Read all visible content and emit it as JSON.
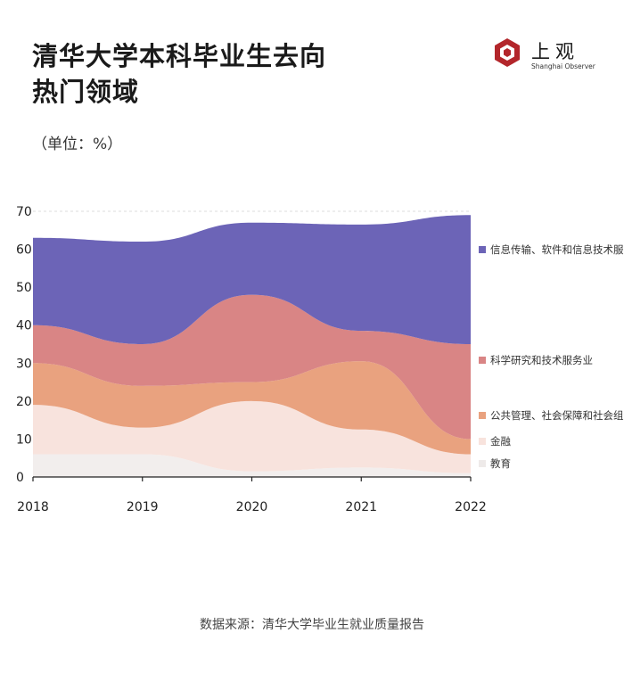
{
  "header": {
    "title_line1": "清华大学本科毕业生去向",
    "title_line2": "热门领域",
    "unit": "（单位：%）"
  },
  "logo": {
    "cn": "上观",
    "en": "Shanghai Observer"
  },
  "chart_data": {
    "type": "area",
    "title": "清华大学本科毕业生去向热门领域",
    "ylabel": "单位：%",
    "categories": [
      "2018",
      "2019",
      "2020",
      "2021",
      "2022"
    ],
    "ylim": [
      0,
      70
    ],
    "yticks": [
      0,
      10,
      20,
      30,
      40,
      50,
      60,
      70
    ],
    "stacked": true,
    "series": [
      {
        "name": "教育",
        "values": [
          6,
          6,
          1.5,
          2.5,
          1
        ],
        "color": "#f2eeed"
      },
      {
        "name": "金融",
        "values": [
          13,
          7,
          18.5,
          10,
          5
        ],
        "color": "#f8e3dd"
      },
      {
        "name": "公共管理、社会保障和社会组织",
        "values": [
          11,
          11,
          5,
          18,
          4
        ],
        "color": "#e9a27f"
      },
      {
        "name": "科学研究和技术服务业",
        "values": [
          10,
          11,
          23,
          8,
          25
        ],
        "color": "#d98585"
      },
      {
        "name": "信息传输、软件和信息技术服务业",
        "values": [
          23,
          27,
          19,
          28,
          34
        ],
        "color": "#6c64b7"
      }
    ]
  },
  "legend": {
    "items": [
      {
        "label": "信息传输、软件和信息技术服务业",
        "color": "#6c64b7"
      },
      {
        "label": "科学研究和技术服务业",
        "color": "#d98585"
      },
      {
        "label": "公共管理、社会保障和社会组织",
        "color": "#e9a27f"
      },
      {
        "label": "金融",
        "color": "#f8e3dd"
      },
      {
        "label": "教育",
        "color": "#eeeae9"
      }
    ]
  },
  "source": "数据来源：清华大学毕业生就业质量报告"
}
